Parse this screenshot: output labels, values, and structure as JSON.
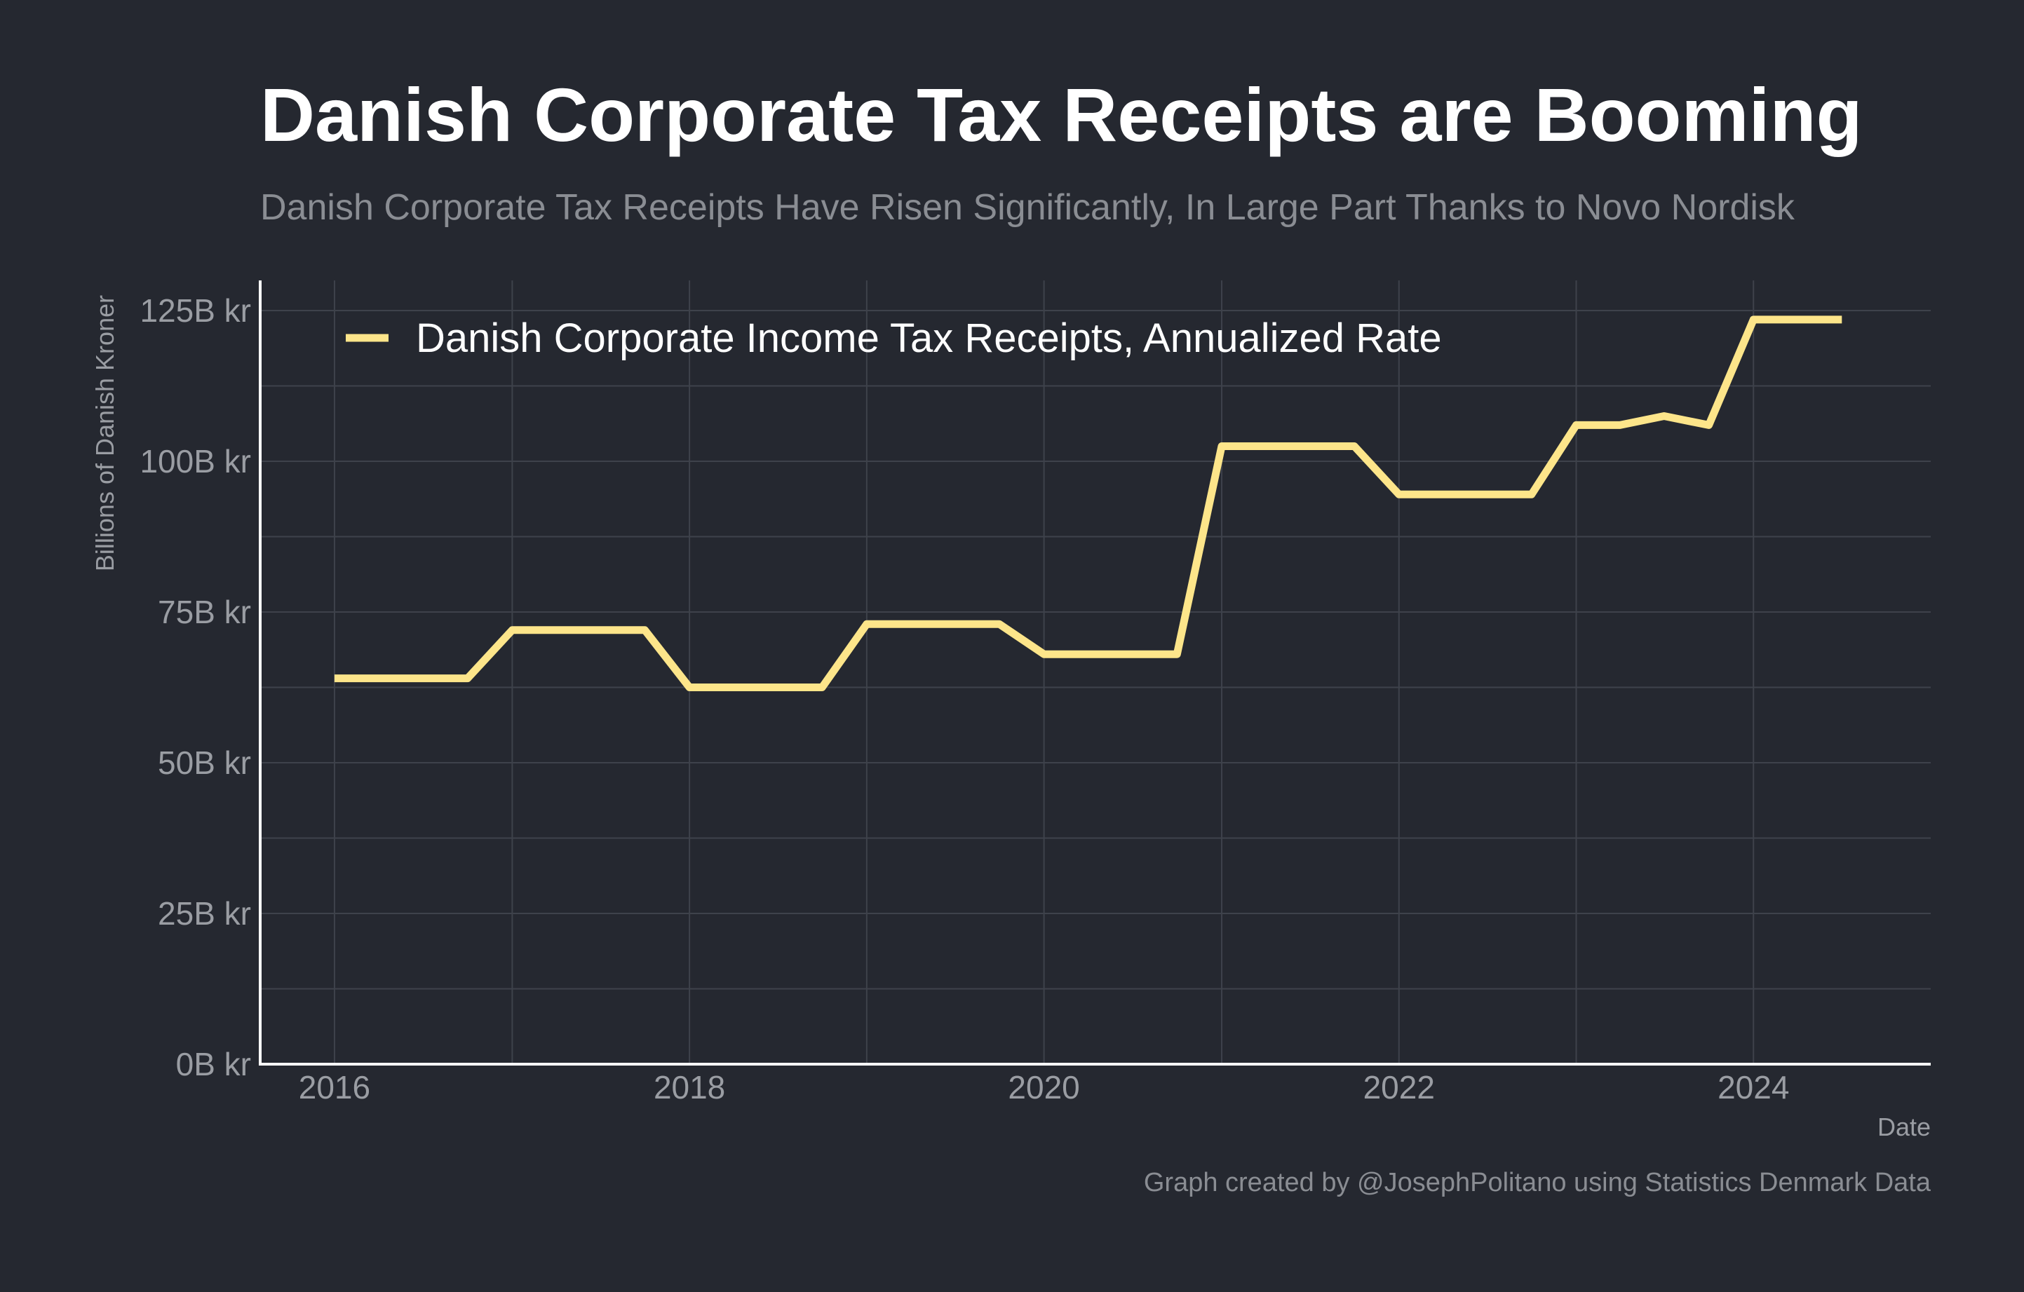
{
  "title": "Danish Corporate Tax Receipts are Booming",
  "subtitle": "Danish Corporate Tax Receipts Have Risen Significantly, In Large Part Thanks to Novo Nordisk",
  "caption": "Graph created by @JosephPolitano using Statistics Denmark Data",
  "colors": {
    "background": "#252830",
    "line": "#fde58a",
    "grid": "#3e424b",
    "axis": "#ffffff",
    "muted_text": "#9a9da3"
  },
  "chart_data": {
    "type": "line",
    "xlabel": "Date",
    "ylabel": "Billions of Danish Kroner",
    "xlim": [
      "2015-08-01",
      "2024-12-31"
    ],
    "ylim": [
      0,
      130
    ],
    "x_ticks": [
      {
        "date": "2016-01-01",
        "label": "2016"
      },
      {
        "date": "2018-01-01",
        "label": "2018"
      },
      {
        "date": "2020-01-01",
        "label": "2020"
      },
      {
        "date": "2022-01-01",
        "label": "2022"
      },
      {
        "date": "2024-01-01",
        "label": "2024"
      }
    ],
    "y_ticks": [
      {
        "value": 0,
        "label": "0B kr"
      },
      {
        "value": 25,
        "label": "25B kr"
      },
      {
        "value": 50,
        "label": "50B kr"
      },
      {
        "value": 75,
        "label": "75B kr"
      },
      {
        "value": 100,
        "label": "100B kr"
      },
      {
        "value": 125,
        "label": "125B kr"
      }
    ],
    "grid": true,
    "legend_position": "top-left",
    "series": [
      {
        "name": "Danish Corporate Income Tax Receipts, Annualized Rate",
        "points": [
          {
            "date": "2016-01-01",
            "value": 64
          },
          {
            "date": "2016-04-01",
            "value": 64
          },
          {
            "date": "2016-07-01",
            "value": 64
          },
          {
            "date": "2016-10-01",
            "value": 64
          },
          {
            "date": "2017-01-01",
            "value": 72
          },
          {
            "date": "2017-04-01",
            "value": 72
          },
          {
            "date": "2017-07-01",
            "value": 72
          },
          {
            "date": "2017-10-01",
            "value": 72
          },
          {
            "date": "2018-01-01",
            "value": 62.5
          },
          {
            "date": "2018-04-01",
            "value": 62.5
          },
          {
            "date": "2018-07-01",
            "value": 62.5
          },
          {
            "date": "2018-10-01",
            "value": 62.5
          },
          {
            "date": "2019-01-01",
            "value": 73
          },
          {
            "date": "2019-04-01",
            "value": 73
          },
          {
            "date": "2019-07-01",
            "value": 73
          },
          {
            "date": "2019-10-01",
            "value": 73
          },
          {
            "date": "2020-01-01",
            "value": 68
          },
          {
            "date": "2020-04-01",
            "value": 68
          },
          {
            "date": "2020-07-01",
            "value": 68
          },
          {
            "date": "2020-10-01",
            "value": 68
          },
          {
            "date": "2021-01-01",
            "value": 102.5
          },
          {
            "date": "2021-04-01",
            "value": 102.5
          },
          {
            "date": "2021-07-01",
            "value": 102.5
          },
          {
            "date": "2021-10-01",
            "value": 102.5
          },
          {
            "date": "2022-01-01",
            "value": 94.5
          },
          {
            "date": "2022-04-01",
            "value": 94.5
          },
          {
            "date": "2022-07-01",
            "value": 94.5
          },
          {
            "date": "2022-10-01",
            "value": 94.5
          },
          {
            "date": "2023-01-01",
            "value": 106
          },
          {
            "date": "2023-04-01",
            "value": 106
          },
          {
            "date": "2023-07-01",
            "value": 107.5
          },
          {
            "date": "2023-10-01",
            "value": 106
          },
          {
            "date": "2024-01-01",
            "value": 123.5
          },
          {
            "date": "2024-04-01",
            "value": 123.5
          },
          {
            "date": "2024-07-01",
            "value": 123.5
          }
        ]
      }
    ]
  }
}
